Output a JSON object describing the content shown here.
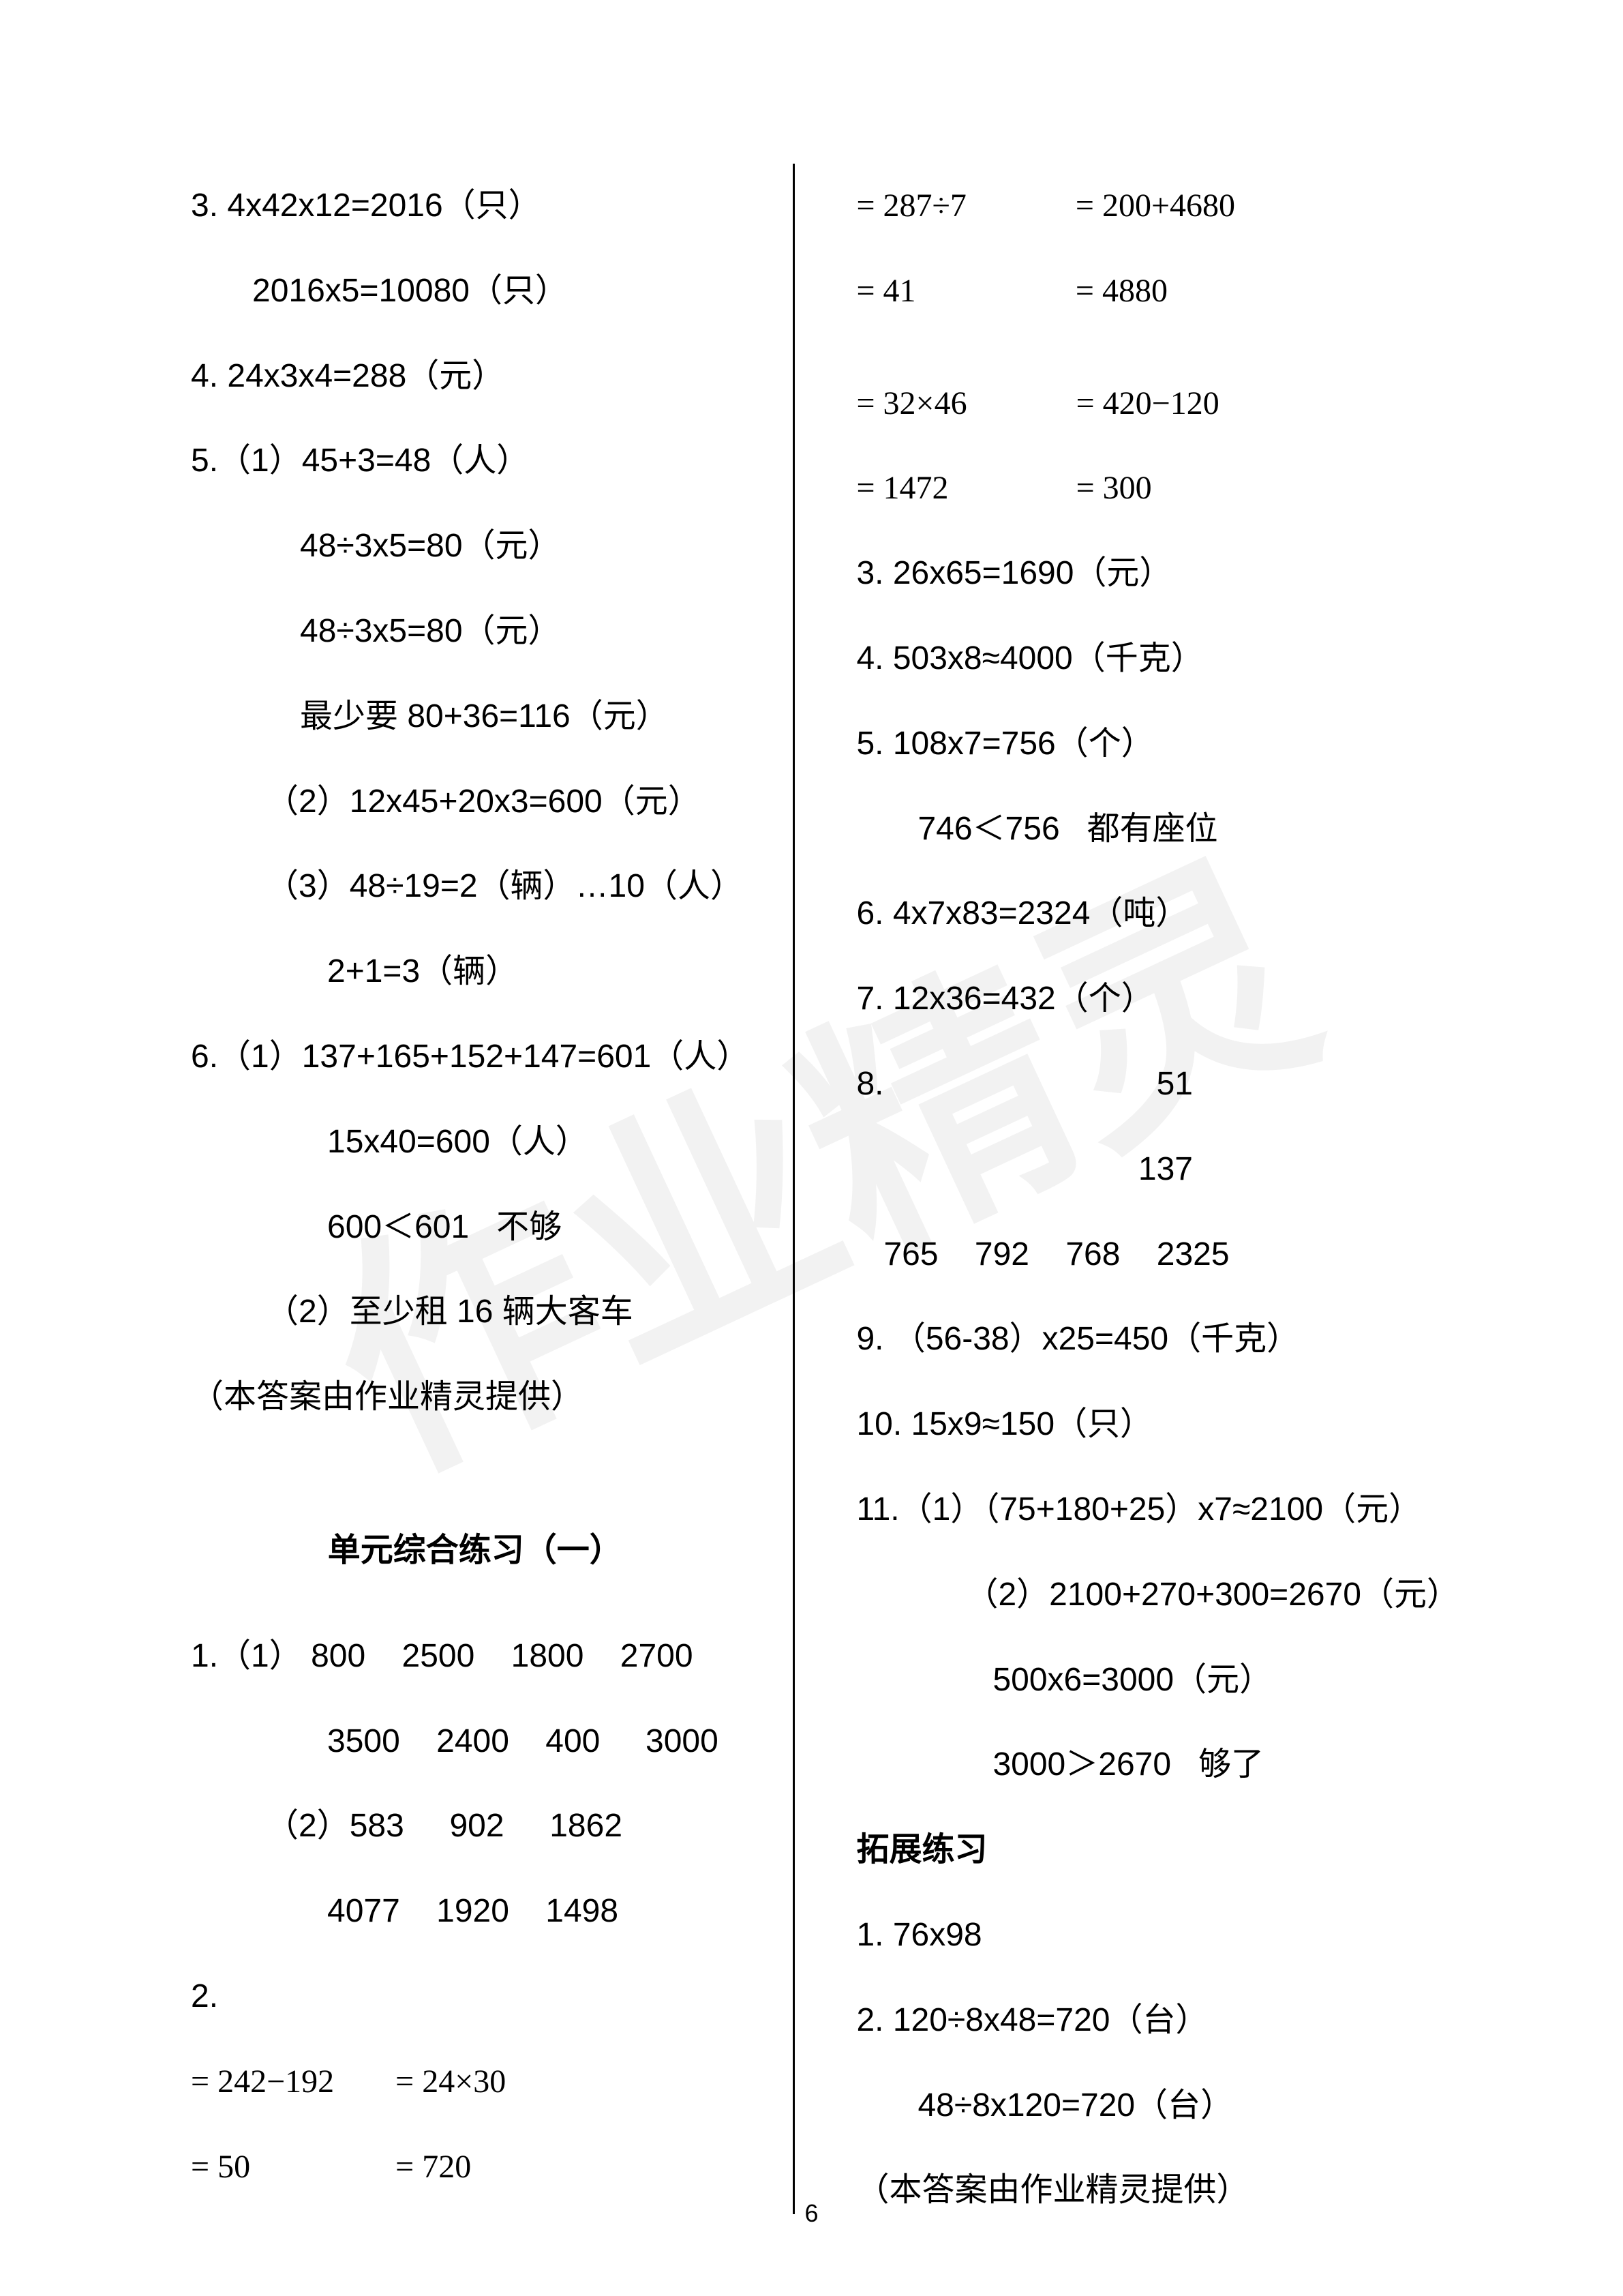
{
  "watermark_text": "作业精灵",
  "page_number": "6",
  "left": {
    "l3a": "3. 4x42x12=2016（只）",
    "l3b": "2016x5=10080（只）",
    "l4": "4. 24x3x4=288（元）",
    "l5a": "5.（1）45+3=48（人）",
    "l5b": "48÷3x5=80（元）",
    "l5c": "48÷3x5=80（元）",
    "l5d": "最少要 80+36=116（元）",
    "l5e": "（2）12x45+20x3=600（元）",
    "l5f": "（3）48÷19=2（辆）…10（人）",
    "l5g": "2+1=3（辆）",
    "l6a": "6.（1）137+165+152+147=601（人）",
    "l6b": "15x40=600（人）",
    "l6c": "600＜601   不够",
    "l6d": "（2）至少租 16 辆大客车",
    "credit": "（本答案由作业精灵提供）",
    "unit_title": "单元综合练习（一）",
    "q1a": "1.（1） 800    2500    1800    2700",
    "q1b": "3500    2400    400     3000",
    "q1c": "（2）583     902     1862",
    "q1d": "4077    1920    1498",
    "q2": "2.",
    "eq1a": "= 242−192",
    "eq1b": "= 50",
    "eq2a": "= 24×30",
    "eq2b": "= 720"
  },
  "right": {
    "eq3a": "= 287÷7",
    "eq3b": "= 41",
    "eq4a": "= 200+4680",
    "eq4b": "= 4880",
    "eq5a": "= 32×46",
    "eq5b": "= 1472",
    "eq6a": "= 420−120",
    "eq6b": "= 300",
    "r3": "3. 26x65=1690（元）",
    "r4": "4. 503x8≈4000（千克）",
    "r5": "5. 108x7=756（个）",
    "r5b": "746＜756   都有座位",
    "r6": "6. 4x7x83=2324（吨）",
    "r7": "7. 12x36=432（个）",
    "r8a": "8.                              51",
    "r8b": "                               137",
    "r8c": "   765    792    768    2325",
    "r9": "9. （56-38）x25=450（千克）",
    "r10": "10. 15x9≈150（只）",
    "r11a": "11.（1）（75+180+25）x7≈2100（元）",
    "r11b": "（2）2100+270+300=2670（元）",
    "r11c": "500x6=3000（元）",
    "r11d": "3000＞2670   够了",
    "ext_title": "拓展练习",
    "e1": "1. 76x98",
    "e2": "2. 120÷8x48=720（台）",
    "e2b": "48÷8x120=720（台）",
    "credit": "（本答案由作业精灵提供）"
  },
  "style": {
    "font_size": 48,
    "text_color": "#000000",
    "background": "#ffffff",
    "watermark_color": "rgba(0,0,0,0.05)"
  }
}
